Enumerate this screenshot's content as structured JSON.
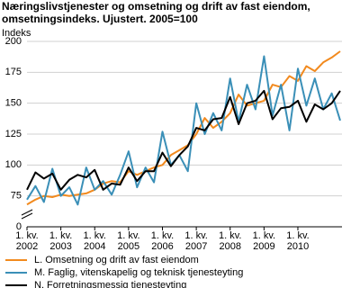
{
  "chart_data": {
    "type": "line",
    "title": "Næringslivstjenester og omsetning og drift av fast eiendom, omsetningsindeks. Ujustert. 2005=100",
    "y_label": "Indeks",
    "categories": [
      "1. kv. 2002",
      null,
      null,
      null,
      "1. kv. 2003",
      null,
      null,
      null,
      "1. kv. 2004",
      null,
      null,
      null,
      "1. kv. 2005",
      null,
      null,
      null,
      "1. kv. 2006",
      null,
      null,
      null,
      "1. kv. 2007",
      null,
      null,
      null,
      "1. kv. 2008",
      null,
      null,
      null,
      "1. kv. 2009",
      null,
      null,
      null,
      "1. kv. 2010",
      null,
      null,
      null,
      null,
      null
    ],
    "series": [
      {
        "name": "L. Omsetning og drift av fast eiendom",
        "color": "#f28a1e",
        "values": [
          68,
          72,
          75,
          74,
          76,
          75,
          76,
          77,
          80,
          85,
          87,
          86,
          95,
          92,
          95,
          98,
          100,
          108,
          112,
          116,
          125,
          138,
          130,
          135,
          142,
          157,
          148,
          150,
          152,
          165,
          163,
          172,
          168,
          180,
          176,
          183,
          187,
          192
        ]
      },
      {
        "name": "M. Faglig, vitenskapelig og teknisk tjenesteyting",
        "color": "#3a8fb7",
        "values": [
          72,
          83,
          70,
          97,
          75,
          82,
          68,
          98,
          80,
          87,
          76,
          92,
          111,
          82,
          98,
          86,
          127,
          100,
          108,
          95,
          150,
          125,
          142,
          128,
          170,
          135,
          165,
          145,
          188,
          140,
          165,
          128,
          178,
          148,
          170,
          145,
          158,
          136
        ]
      },
      {
        "name": "N. Forretningsmessig tjenesteyting",
        "color": "#000000",
        "values": [
          80,
          94,
          89,
          93,
          80,
          88,
          92,
          90,
          96,
          80,
          85,
          84,
          98,
          87,
          95,
          95,
          110,
          99,
          108,
          115,
          130,
          128,
          137,
          138,
          155,
          133,
          150,
          152,
          160,
          137,
          146,
          147,
          152,
          135,
          149,
          145,
          150,
          160
        ]
      }
    ],
    "ylim": [
      0,
      200
    ],
    "yticks": [
      0,
      75,
      100,
      125,
      150,
      175,
      200
    ],
    "axis_break": true,
    "grid": true
  }
}
